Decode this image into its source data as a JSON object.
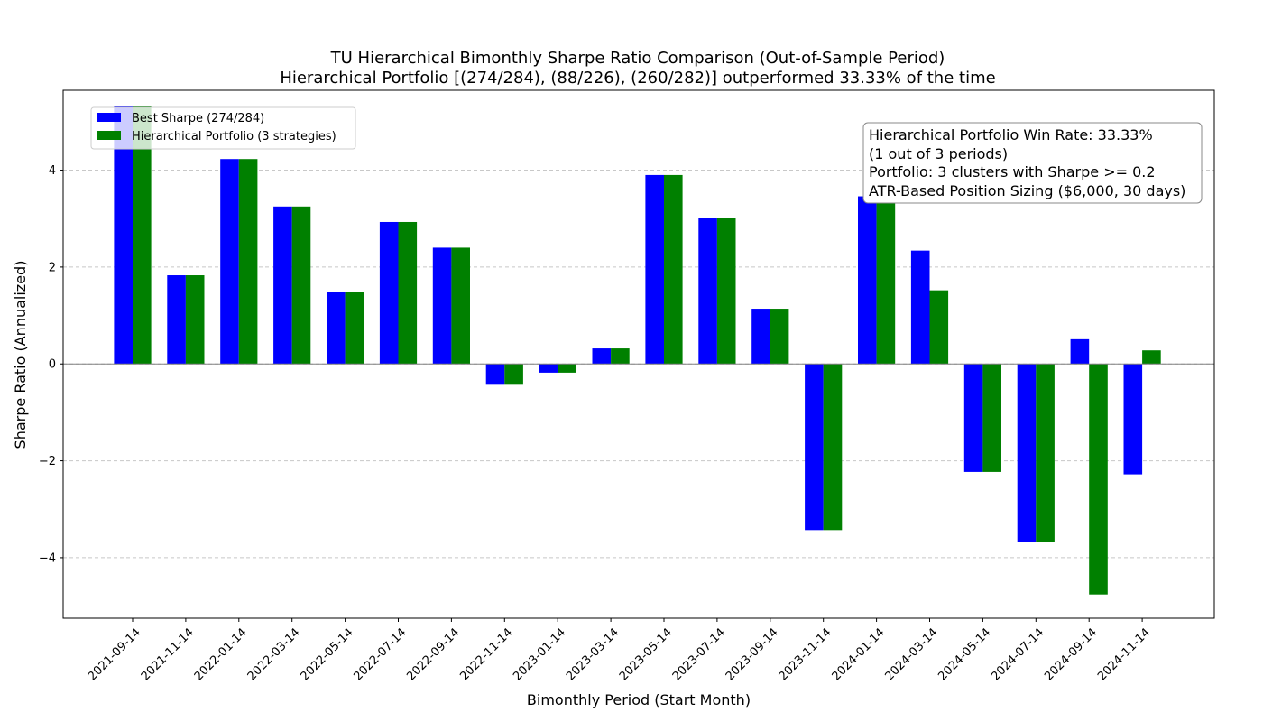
{
  "chart_data": {
    "type": "bar",
    "title": "TU Hierarchical Bimonthly Sharpe Ratio Comparison (Out-of-Sample Period)",
    "subtitle": "Hierarchical Portfolio [(274/284), (88/226), (260/282)] outperformed 33.33% of the time",
    "xlabel": "Bimonthly Period (Start Month)",
    "ylabel": "Sharpe Ratio (Annualized)",
    "ylim": [
      -5.25,
      5.65
    ],
    "yticks": [
      -4,
      -2,
      0,
      2,
      4
    ],
    "grid": "y-dashed",
    "legend_position": "top-left",
    "categories": [
      "2021-09-14",
      "2021-11-14",
      "2022-01-14",
      "2022-03-14",
      "2022-05-14",
      "2022-07-14",
      "2022-09-14",
      "2022-11-14",
      "2023-01-14",
      "2023-03-14",
      "2023-05-14",
      "2023-07-14",
      "2023-09-14",
      "2023-11-14",
      "2024-01-14",
      "2024-03-14",
      "2024-05-14",
      "2024-07-14",
      "2024-09-14",
      "2024-11-14"
    ],
    "series": [
      {
        "name": "Best Sharpe (274/284)",
        "color": "#0000ff",
        "values": [
          5.32,
          1.83,
          4.23,
          3.25,
          1.48,
          2.93,
          2.4,
          -0.43,
          -0.18,
          0.32,
          3.9,
          3.02,
          1.14,
          -3.43,
          3.46,
          2.34,
          -2.23,
          -3.68,
          0.51,
          -2.28
        ]
      },
      {
        "name": "Hierarchical Portfolio (3 strategies)",
        "color": "#008000",
        "values": [
          5.32,
          1.83,
          4.23,
          3.25,
          1.48,
          2.93,
          2.4,
          -0.43,
          -0.18,
          0.32,
          3.9,
          3.02,
          1.14,
          -3.43,
          3.46,
          1.52,
          -2.23,
          -3.68,
          -4.76,
          0.28
        ]
      }
    ],
    "info_box": [
      "Hierarchical Portfolio Win Rate: 33.33%",
      "(1 out of 3 periods)",
      "Portfolio: 3 clusters with Sharpe >= 0.2",
      "ATR-Based Position Sizing ($6,000, 30 days)"
    ]
  }
}
